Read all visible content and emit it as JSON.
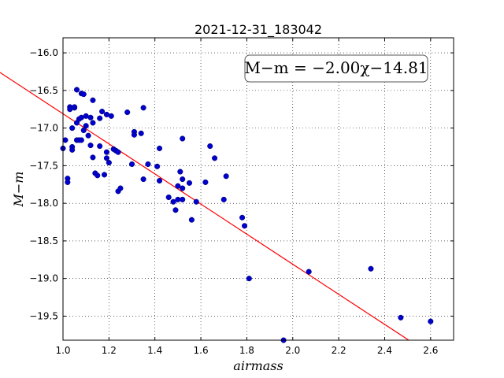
{
  "chart_data": {
    "type": "scatter",
    "title": "2021-12-31_183042",
    "xlabel": "airmass",
    "ylabel": "M−m",
    "xlim": [
      1.0,
      2.7
    ],
    "ylim": [
      -19.82,
      -15.8
    ],
    "y_inverted": true,
    "grid": true,
    "x_ticks": [
      1.0,
      1.2,
      1.4,
      1.6,
      1.8,
      2.0,
      2.2,
      2.4,
      2.6
    ],
    "x_tick_labels": [
      "1.0",
      "1.2",
      "1.4",
      "1.6",
      "1.8",
      "2.0",
      "2.2",
      "2.4",
      "2.6"
    ],
    "y_ticks": [
      -16.0,
      -16.5,
      -17.0,
      -17.5,
      -18.0,
      -18.5,
      -19.0,
      -19.5
    ],
    "y_tick_labels": [
      "−16.0",
      "−16.5",
      "−17.0",
      "−17.5",
      "−18.0",
      "−18.5",
      "−19.0",
      "−19.5"
    ],
    "annotation": "M−m = −2.00χ−14.81",
    "fit": {
      "slope": -2.0,
      "intercept": -14.81,
      "color": "#ff0000"
    },
    "point_color": "#0000cc",
    "points": [
      [
        1.0,
        -17.27
      ],
      [
        1.01,
        -17.16
      ],
      [
        1.02,
        -17.67
      ],
      [
        1.02,
        -17.72
      ],
      [
        1.03,
        -16.72
      ],
      [
        1.03,
        -16.75
      ],
      [
        1.04,
        -17.0
      ],
      [
        1.04,
        -17.25
      ],
      [
        1.04,
        -17.29
      ],
      [
        1.05,
        -16.73
      ],
      [
        1.05,
        -16.72
      ],
      [
        1.06,
        -16.49
      ],
      [
        1.06,
        -16.93
      ],
      [
        1.06,
        -17.16
      ],
      [
        1.07,
        -16.88
      ],
      [
        1.07,
        -17.16
      ],
      [
        1.08,
        -16.54
      ],
      [
        1.08,
        -16.86
      ],
      [
        1.08,
        -17.16
      ],
      [
        1.09,
        -16.55
      ],
      [
        1.09,
        -17.03
      ],
      [
        1.1,
        -16.97
      ],
      [
        1.1,
        -16.84
      ],
      [
        1.11,
        -17.1
      ],
      [
        1.12,
        -16.86
      ],
      [
        1.12,
        -17.23
      ],
      [
        1.13,
        -16.63
      ],
      [
        1.13,
        -16.93
      ],
      [
        1.13,
        -17.39
      ],
      [
        1.14,
        -17.6
      ],
      [
        1.15,
        -17.63
      ],
      [
        1.16,
        -17.24
      ],
      [
        1.16,
        -16.87
      ],
      [
        1.17,
        -16.78
      ],
      [
        1.18,
        -17.62
      ],
      [
        1.19,
        -16.82
      ],
      [
        1.19,
        -17.32
      ],
      [
        1.19,
        -17.4
      ],
      [
        1.2,
        -17.46
      ],
      [
        1.21,
        -16.84
      ],
      [
        1.22,
        -17.28
      ],
      [
        1.23,
        -17.3
      ],
      [
        1.24,
        -17.32
      ],
      [
        1.24,
        -17.84
      ],
      [
        1.25,
        -17.8
      ],
      [
        1.28,
        -16.79
      ],
      [
        1.3,
        -17.48
      ],
      [
        1.31,
        -17.05
      ],
      [
        1.31,
        -17.09
      ],
      [
        1.34,
        -17.07
      ],
      [
        1.35,
        -16.73
      ],
      [
        1.35,
        -17.68
      ],
      [
        1.37,
        -17.48
      ],
      [
        1.41,
        -17.51
      ],
      [
        1.42,
        -17.27
      ],
      [
        1.42,
        -17.7
      ],
      [
        1.46,
        -17.92
      ],
      [
        1.48,
        -17.98
      ],
      [
        1.49,
        -18.09
      ],
      [
        1.5,
        -17.95
      ],
      [
        1.5,
        -17.77
      ],
      [
        1.51,
        -17.58
      ],
      [
        1.52,
        -17.68
      ],
      [
        1.52,
        -17.95
      ],
      [
        1.52,
        -17.8
      ],
      [
        1.52,
        -17.14
      ],
      [
        1.55,
        -17.73
      ],
      [
        1.56,
        -18.22
      ],
      [
        1.58,
        -17.98
      ],
      [
        1.62,
        -17.72
      ],
      [
        1.64,
        -17.24
      ],
      [
        1.66,
        -17.4
      ],
      [
        1.7,
        -17.95
      ],
      [
        1.71,
        -17.64
      ],
      [
        1.78,
        -18.19
      ],
      [
        1.79,
        -18.3
      ],
      [
        1.81,
        -19.0
      ],
      [
        1.96,
        -19.82
      ],
      [
        2.07,
        -18.91
      ],
      [
        2.34,
        -18.87
      ],
      [
        2.47,
        -19.52
      ],
      [
        2.6,
        -19.57
      ]
    ]
  }
}
